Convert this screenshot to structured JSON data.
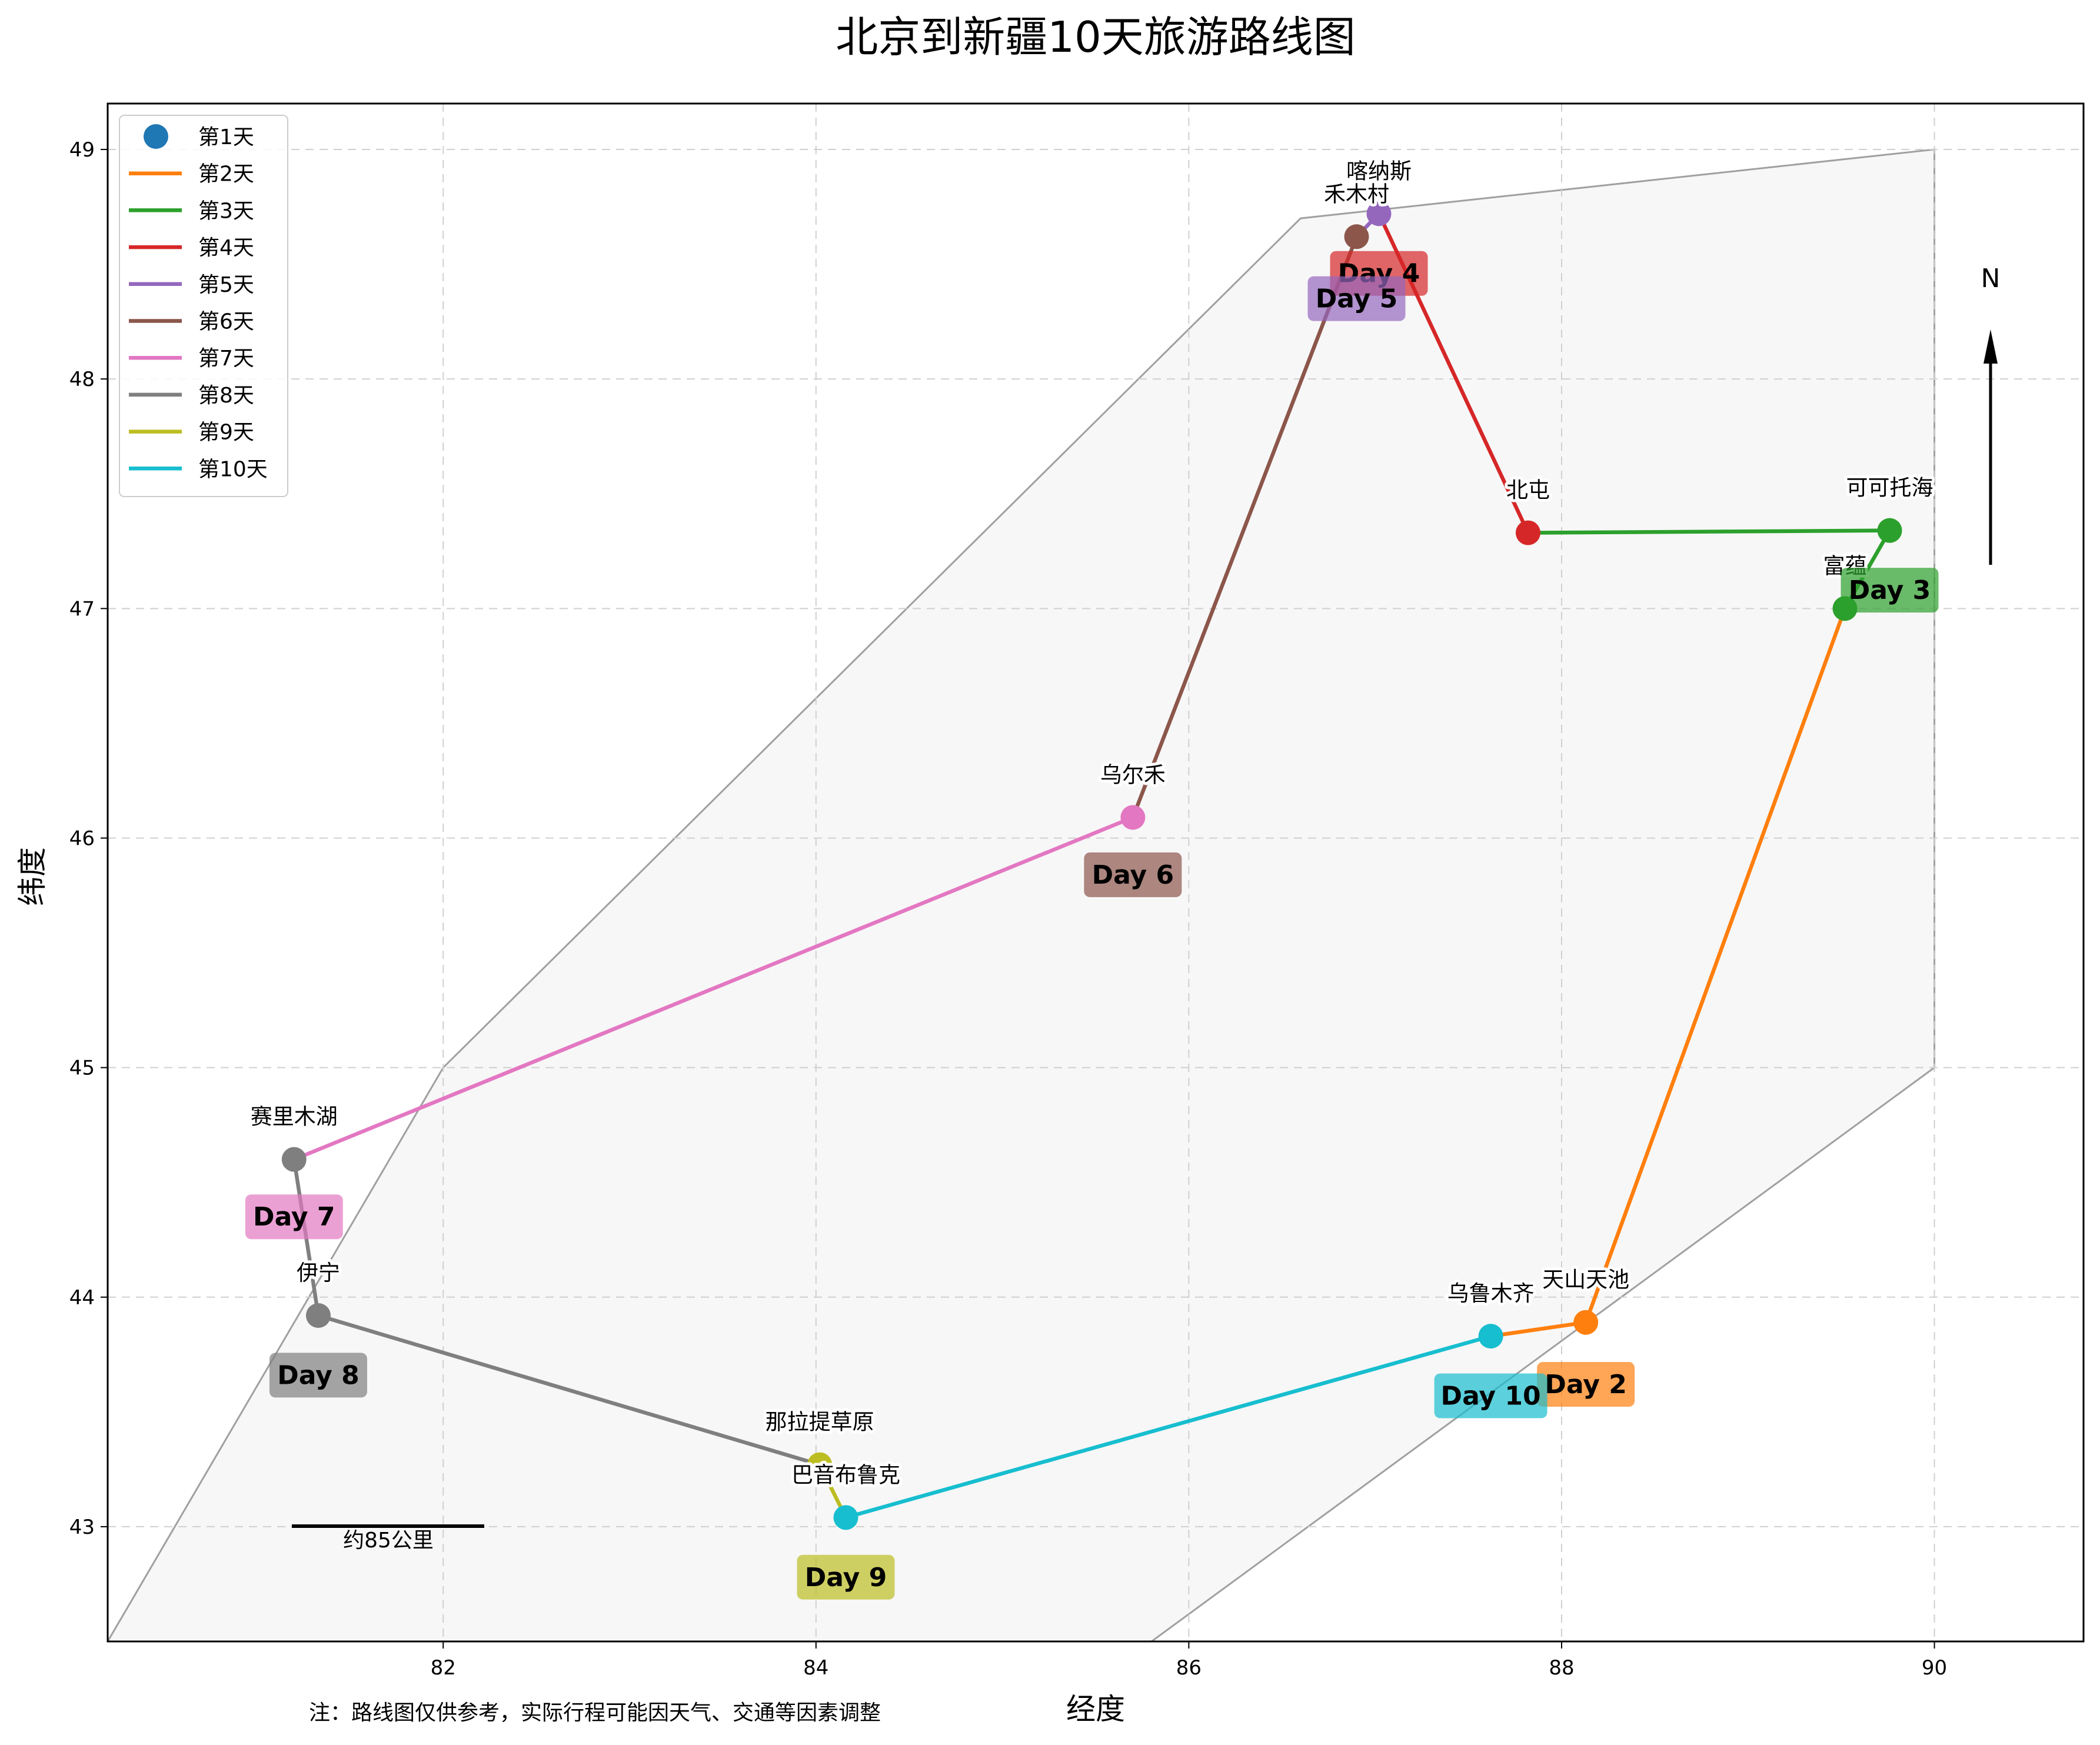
{
  "chart_data": {
    "type": "line",
    "title": "北京到新疆10天旅游路线图",
    "xlabel": "经度",
    "ylabel": "纬度",
    "xlim": [
      80.2,
      90.8
    ],
    "ylim": [
      42.5,
      49.2
    ],
    "xticks": [
      82,
      84,
      86,
      88,
      90
    ],
    "yticks": [
      43,
      44,
      45,
      46,
      47,
      48,
      49
    ],
    "grid": true,
    "legend_position": "top-left",
    "region_polygon": [
      [
        80.2,
        42.5
      ],
      [
        82,
        45
      ],
      [
        86.6,
        48.7
      ],
      [
        90,
        49
      ],
      [
        90,
        45
      ],
      [
        85.8,
        42.5
      ]
    ],
    "places": [
      {
        "name": "乌鲁木齐",
        "lon": 87.62,
        "lat": 43.83
      },
      {
        "name": "天山天池",
        "lon": 88.13,
        "lat": 43.89
      },
      {
        "name": "富蕴",
        "lon": 89.52,
        "lat": 47.0
      },
      {
        "name": "可可托海",
        "lon": 89.76,
        "lat": 47.34
      },
      {
        "name": "北屯",
        "lon": 87.82,
        "lat": 47.33
      },
      {
        "name": "喀纳斯",
        "lon": 87.02,
        "lat": 48.72
      },
      {
        "name": "禾木村",
        "lon": 86.9,
        "lat": 48.62
      },
      {
        "name": "乌尔禾",
        "lon": 85.7,
        "lat": 46.09
      },
      {
        "name": "赛里木湖",
        "lon": 81.2,
        "lat": 44.6
      },
      {
        "name": "伊宁",
        "lon": 81.33,
        "lat": 43.92
      },
      {
        "name": "那拉提草原",
        "lon": 84.02,
        "lat": 43.27
      },
      {
        "name": "巴音布鲁克",
        "lon": 84.16,
        "lat": 43.04
      }
    ],
    "series": [
      {
        "name": "第1天",
        "color": "#1f77b4",
        "marker_only": true,
        "points": []
      },
      {
        "name": "第2天",
        "color": "#ff7f0e",
        "points": [
          [
            87.62,
            43.83
          ],
          [
            88.13,
            43.89
          ],
          [
            89.52,
            47.0
          ]
        ]
      },
      {
        "name": "第3天",
        "color": "#2ca02c",
        "points": [
          [
            89.52,
            47.0
          ],
          [
            89.76,
            47.34
          ],
          [
            87.82,
            47.33
          ]
        ]
      },
      {
        "name": "第4天",
        "color": "#d62728",
        "points": [
          [
            87.82,
            47.33
          ],
          [
            87.02,
            48.72
          ]
        ]
      },
      {
        "name": "第5天",
        "color": "#9467bd",
        "points": [
          [
            87.02,
            48.72
          ],
          [
            86.9,
            48.62
          ]
        ]
      },
      {
        "name": "第6天",
        "color": "#8c564b",
        "points": [
          [
            86.9,
            48.62
          ],
          [
            85.7,
            46.09
          ]
        ]
      },
      {
        "name": "第7天",
        "color": "#e377c2",
        "points": [
          [
            85.7,
            46.09
          ],
          [
            81.2,
            44.6
          ]
        ]
      },
      {
        "name": "第8天",
        "color": "#7f7f7f",
        "points": [
          [
            81.2,
            44.6
          ],
          [
            81.33,
            43.92
          ],
          [
            84.02,
            43.27
          ]
        ]
      },
      {
        "name": "第9天",
        "color": "#bcbd22",
        "points": [
          [
            84.02,
            43.27
          ],
          [
            84.16,
            43.04
          ]
        ]
      },
      {
        "name": "第10天",
        "color": "#17becf",
        "points": [
          [
            84.16,
            43.04
          ],
          [
            87.62,
            43.83
          ]
        ]
      }
    ],
    "day_labels": [
      {
        "text": "Day 2",
        "lon": 88.13,
        "lat": 43.62,
        "color": "#ff7f0e"
      },
      {
        "text": "Day 3",
        "lon": 89.76,
        "lat": 47.08,
        "color": "#2ca02c"
      },
      {
        "text": "Day 4",
        "lon": 87.02,
        "lat": 48.46,
        "color": "#d62728"
      },
      {
        "text": "Day 5",
        "lon": 86.9,
        "lat": 48.35,
        "color": "#9467bd"
      },
      {
        "text": "Day 6",
        "lon": 85.7,
        "lat": 45.84,
        "color": "#8c564b"
      },
      {
        "text": "Day 7",
        "lon": 81.2,
        "lat": 44.35,
        "color": "#e377c2"
      },
      {
        "text": "Day 8",
        "lon": 81.33,
        "lat": 43.66,
        "color": "#7f7f7f"
      },
      {
        "text": "Day 9",
        "lon": 84.16,
        "lat": 42.78,
        "color": "#bcbd22"
      },
      {
        "text": "Day 10",
        "lon": 87.62,
        "lat": 43.57,
        "color": "#17becf"
      }
    ],
    "north_arrow_label": "N",
    "scale_bar_label": "约85公里",
    "note": "注：路线图仅供参考，实际行程可能因天气、交通等因素调整"
  }
}
